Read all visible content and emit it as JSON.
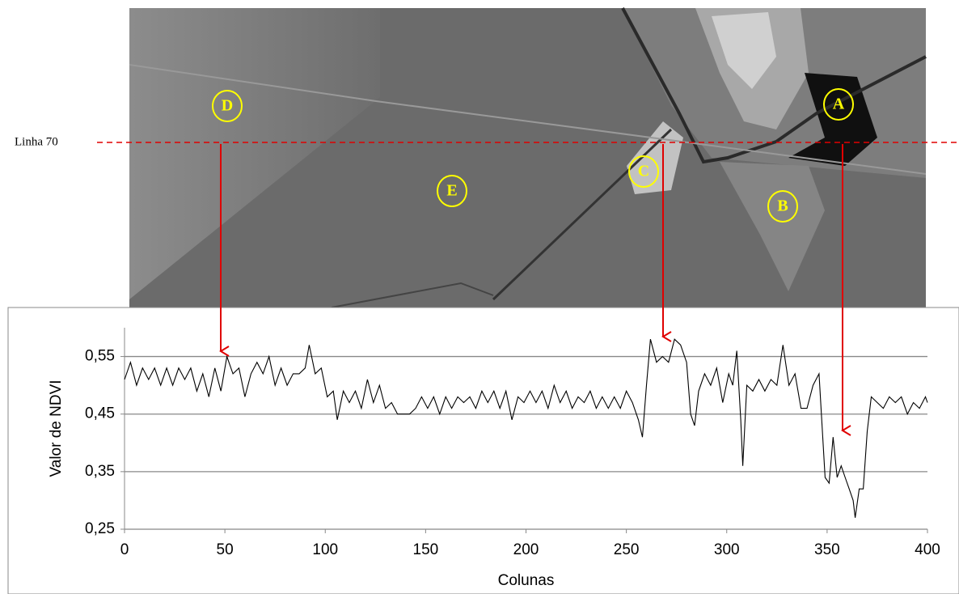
{
  "image": {
    "line_label": "Linha 70",
    "markers": [
      "D",
      "E",
      "C",
      "B",
      "A"
    ]
  },
  "chart_data": {
    "type": "line",
    "x_label": "Colunas",
    "y_label": "Valor de NDVI",
    "xlim": [
      0,
      400
    ],
    "xticks": [
      0,
      50,
      100,
      150,
      200,
      250,
      300,
      350,
      400
    ],
    "ylim": [
      0.25,
      0.6
    ],
    "yticks": [
      {
        "value": 0.25,
        "label": "0,25"
      },
      {
        "value": 0.35,
        "label": "0,35"
      },
      {
        "value": 0.45,
        "label": "0,45"
      },
      {
        "value": 0.55,
        "label": "0,55"
      }
    ],
    "grid": true,
    "series": [
      {
        "color": "#000000",
        "x": [
          0,
          3,
          6,
          9,
          12,
          15,
          18,
          21,
          24,
          27,
          30,
          33,
          36,
          39,
          42,
          45,
          48,
          51,
          54,
          57,
          60,
          63,
          66,
          69,
          72,
          75,
          78,
          81,
          84,
          87,
          90,
          92,
          95,
          98,
          101,
          104,
          106,
          109,
          112,
          115,
          118,
          121,
          124,
          127,
          130,
          133,
          136,
          139,
          142,
          145,
          148,
          151,
          154,
          157,
          160,
          163,
          166,
          169,
          172,
          175,
          178,
          181,
          184,
          187,
          190,
          193,
          196,
          199,
          202,
          205,
          208,
          211,
          214,
          217,
          220,
          223,
          226,
          229,
          232,
          235,
          238,
          241,
          244,
          247,
          250,
          253,
          256,
          258,
          260,
          262,
          265,
          268,
          271,
          274,
          277,
          280,
          282,
          284,
          286,
          289,
          292,
          295,
          298,
          301,
          303,
          305,
          307,
          308,
          310,
          313,
          316,
          319,
          322,
          325,
          328,
          331,
          334,
          337,
          340,
          343,
          346,
          349,
          351,
          353,
          355,
          357,
          359,
          361,
          363,
          364,
          366,
          368,
          370,
          372,
          375,
          378,
          381,
          384,
          387,
          390,
          393,
          396,
          399,
          400
        ],
        "values": [
          0.51,
          0.54,
          0.5,
          0.53,
          0.51,
          0.53,
          0.5,
          0.53,
          0.5,
          0.53,
          0.51,
          0.53,
          0.49,
          0.52,
          0.48,
          0.53,
          0.49,
          0.55,
          0.52,
          0.53,
          0.48,
          0.52,
          0.54,
          0.52,
          0.55,
          0.5,
          0.53,
          0.5,
          0.52,
          0.52,
          0.53,
          0.57,
          0.52,
          0.53,
          0.48,
          0.49,
          0.44,
          0.49,
          0.47,
          0.49,
          0.46,
          0.51,
          0.47,
          0.5,
          0.46,
          0.47,
          0.45,
          0.45,
          0.45,
          0.46,
          0.48,
          0.46,
          0.48,
          0.45,
          0.48,
          0.46,
          0.48,
          0.47,
          0.48,
          0.46,
          0.49,
          0.47,
          0.49,
          0.46,
          0.49,
          0.44,
          0.48,
          0.47,
          0.49,
          0.47,
          0.49,
          0.46,
          0.5,
          0.47,
          0.49,
          0.46,
          0.48,
          0.47,
          0.49,
          0.46,
          0.48,
          0.46,
          0.48,
          0.46,
          0.49,
          0.47,
          0.44,
          0.41,
          0.5,
          0.58,
          0.54,
          0.55,
          0.54,
          0.58,
          0.57,
          0.54,
          0.45,
          0.43,
          0.49,
          0.52,
          0.5,
          0.53,
          0.47,
          0.52,
          0.5,
          0.56,
          0.44,
          0.36,
          0.5,
          0.49,
          0.51,
          0.49,
          0.51,
          0.5,
          0.57,
          0.5,
          0.52,
          0.46,
          0.46,
          0.5,
          0.52,
          0.34,
          0.33,
          0.41,
          0.34,
          0.36,
          0.34,
          0.32,
          0.3,
          0.27,
          0.32,
          0.32,
          0.42,
          0.48,
          0.47,
          0.46,
          0.48,
          0.47,
          0.48,
          0.45,
          0.47,
          0.46,
          0.48,
          0.47
        ]
      }
    ]
  }
}
